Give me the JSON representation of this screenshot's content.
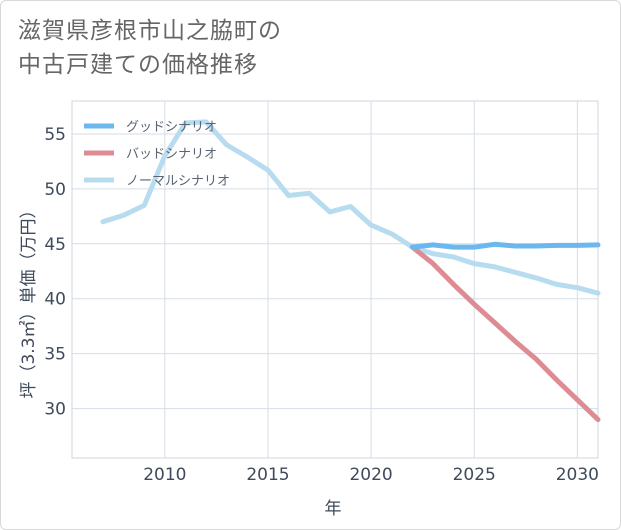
{
  "header": {
    "title_line1": "滋賀県彦根市山之脇町の",
    "title_line2": "中古戸建ての価格推移"
  },
  "chart_data": {
    "type": "line",
    "title": "滋賀県彦根市山之脇町の中古戸建ての価格推移",
    "xlabel": "年",
    "ylabel": "坪（3.3㎡）単価（万円）",
    "xlim": [
      2005.5,
      2031
    ],
    "ylim": [
      25.5,
      58
    ],
    "xticks": [
      2010,
      2015,
      2020,
      2025,
      2030
    ],
    "yticks": [
      30,
      35,
      40,
      45,
      50,
      55
    ],
    "grid": true,
    "legend_position": "top-left",
    "series": [
      {
        "name": "グッドシナリオ",
        "color": "#6bb8ef",
        "x": [
          2022,
          2023,
          2024,
          2025,
          2026,
          2027,
          2028,
          2029,
          2030,
          2031
        ],
        "y": [
          44.7,
          44.9,
          44.7,
          44.7,
          44.95,
          44.8,
          44.8,
          44.85,
          44.85,
          44.9
        ]
      },
      {
        "name": "バッドシナリオ",
        "color": "#de8c94",
        "x": [
          2022,
          2023,
          2024,
          2025,
          2026,
          2027,
          2028,
          2029,
          2030,
          2031
        ],
        "y": [
          44.7,
          43.2,
          41.3,
          39.5,
          37.8,
          36.1,
          34.5,
          32.6,
          30.8,
          29.0
        ]
      },
      {
        "name": "ノーマルシナリオ",
        "color": "#b8dcef",
        "x": [
          2007,
          2008,
          2009,
          2010,
          2011,
          2012,
          2013,
          2014,
          2015,
          2016,
          2017,
          2018,
          2019,
          2020,
          2021,
          2022,
          2023,
          2024,
          2025,
          2026,
          2027,
          2028,
          2029,
          2030,
          2031
        ],
        "y": [
          47.0,
          47.6,
          48.5,
          53.0,
          56.0,
          56.1,
          54.0,
          52.9,
          51.7,
          49.4,
          49.6,
          47.9,
          48.4,
          46.7,
          45.9,
          44.7,
          44.1,
          43.8,
          43.2,
          42.9,
          42.4,
          41.9,
          41.3,
          41.0,
          40.5
        ]
      }
    ]
  }
}
